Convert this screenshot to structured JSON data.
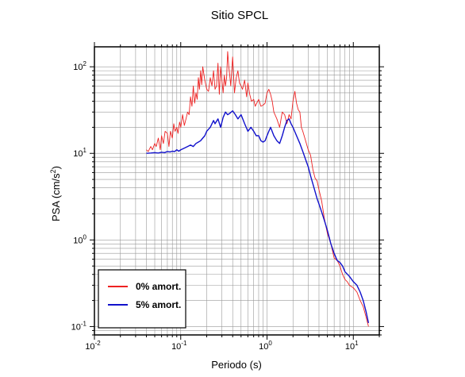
{
  "chart_data": {
    "type": "line",
    "title": "Sitio SPCL",
    "xlabel": "Periodo (s)",
    "ylabel_main": "PSA (cm/s",
    "ylabel_sup": "2",
    "ylabel_close": ")",
    "xscale": "log",
    "yscale": "log",
    "xlim": [
      0.01,
      20
    ],
    "ylim": [
      0.08,
      170
    ],
    "grid": true,
    "legend_position": "bottom-left",
    "x_ticks": [
      {
        "value": 0.01,
        "base": "10",
        "exp": "-2"
      },
      {
        "value": 0.1,
        "base": "10",
        "exp": "-1"
      },
      {
        "value": 1,
        "base": "10",
        "exp": "0"
      },
      {
        "value": 10,
        "base": "10",
        "exp": "1"
      }
    ],
    "y_ticks": [
      {
        "value": 0.1,
        "base": "10",
        "exp": "-1"
      },
      {
        "value": 1,
        "base": "10",
        "exp": "0"
      },
      {
        "value": 10,
        "base": "10",
        "exp": "1"
      },
      {
        "value": 100,
        "base": "10",
        "exp": "2"
      }
    ],
    "series": [
      {
        "name": "0% amort.",
        "color": "#ee2222",
        "x": [
          0.04,
          0.042,
          0.045,
          0.047,
          0.05,
          0.052,
          0.055,
          0.058,
          0.06,
          0.063,
          0.066,
          0.07,
          0.073,
          0.076,
          0.08,
          0.083,
          0.086,
          0.09,
          0.093,
          0.097,
          0.1,
          0.105,
          0.11,
          0.115,
          0.12,
          0.125,
          0.13,
          0.135,
          0.14,
          0.145,
          0.15,
          0.155,
          0.16,
          0.165,
          0.17,
          0.175,
          0.18,
          0.19,
          0.2,
          0.21,
          0.22,
          0.23,
          0.24,
          0.25,
          0.26,
          0.27,
          0.28,
          0.29,
          0.3,
          0.31,
          0.32,
          0.33,
          0.34,
          0.35,
          0.36,
          0.37,
          0.38,
          0.39,
          0.4,
          0.42,
          0.44,
          0.46,
          0.48,
          0.5,
          0.52,
          0.55,
          0.58,
          0.6,
          0.63,
          0.66,
          0.7,
          0.73,
          0.76,
          0.8,
          0.85,
          0.9,
          0.95,
          1.0,
          1.05,
          1.1,
          1.15,
          1.2,
          1.3,
          1.4,
          1.5,
          1.6,
          1.7,
          1.8,
          1.9,
          2.0,
          2.1,
          2.2,
          2.3,
          2.4,
          2.5,
          2.6,
          2.8,
          3.0,
          3.2,
          3.4,
          3.6,
          3.8,
          4.0,
          4.3,
          4.6,
          5.0,
          5.5,
          6.0,
          6.5,
          7.0,
          7.5,
          8.0,
          8.5,
          9.0,
          10.0,
          11.0,
          12.0,
          13.0,
          14.0,
          15.0
        ],
        "y": [
          11,
          10.5,
          12,
          11,
          13,
          12,
          15,
          11,
          16,
          13,
          18,
          17,
          12,
          18,
          15,
          22,
          18,
          20,
          17,
          23,
          20,
          28,
          21,
          25,
          30,
          28,
          45,
          35,
          60,
          38,
          50,
          42,
          75,
          55,
          90,
          62,
          100,
          70,
          55,
          52,
          75,
          60,
          90,
          55,
          60,
          110,
          48,
          100,
          70,
          50,
          80,
          60,
          75,
          150,
          100,
          80,
          60,
          90,
          130,
          50,
          75,
          90,
          65,
          60,
          55,
          70,
          45,
          65,
          48,
          40,
          42,
          35,
          38,
          42,
          35,
          36,
          38,
          50,
          55,
          48,
          40,
          30,
          25,
          20,
          30,
          28,
          22,
          28,
          25,
          40,
          52,
          38,
          32,
          30,
          20,
          18,
          14,
          11,
          9.5,
          6.5,
          5.2,
          4.8,
          3.8,
          2.8,
          1.8,
          1.2,
          0.9,
          0.62,
          0.58,
          0.5,
          0.4,
          0.35,
          0.33,
          0.3,
          0.28,
          0.25,
          0.2,
          0.17,
          0.13,
          0.1
        ]
      },
      {
        "name": "5% amort.",
        "color": "#1111cc",
        "x": [
          0.04,
          0.045,
          0.05,
          0.055,
          0.06,
          0.065,
          0.07,
          0.075,
          0.08,
          0.085,
          0.09,
          0.095,
          0.1,
          0.11,
          0.12,
          0.13,
          0.14,
          0.15,
          0.16,
          0.17,
          0.18,
          0.19,
          0.2,
          0.21,
          0.22,
          0.23,
          0.24,
          0.25,
          0.27,
          0.29,
          0.31,
          0.33,
          0.35,
          0.37,
          0.4,
          0.43,
          0.46,
          0.5,
          0.55,
          0.6,
          0.65,
          0.7,
          0.75,
          0.8,
          0.85,
          0.9,
          0.95,
          1.0,
          1.05,
          1.1,
          1.2,
          1.3,
          1.4,
          1.5,
          1.6,
          1.7,
          1.8,
          1.9,
          2.0,
          2.2,
          2.4,
          2.6,
          2.8,
          3.0,
          3.2,
          3.5,
          3.8,
          4.0,
          4.3,
          4.6,
          5.0,
          5.5,
          6.0,
          6.5,
          7.0,
          7.5,
          8.0,
          9.0,
          10.0,
          11.0,
          12.0,
          13.0,
          14.0,
          15.0
        ],
        "y": [
          10,
          10.1,
          10.2,
          10.1,
          10.3,
          10.2,
          10.5,
          10.4,
          10.6,
          10.5,
          11,
          10.6,
          11,
          11.5,
          12,
          12.5,
          12,
          13,
          13.5,
          14,
          15,
          16,
          18,
          19,
          20,
          22,
          24,
          22,
          25,
          20,
          26,
          30,
          28,
          29,
          31,
          28,
          25,
          28,
          22,
          18,
          20,
          18,
          16,
          16,
          14,
          13.5,
          14,
          16,
          18,
          20,
          16,
          14,
          13,
          16,
          20,
          24,
          25,
          22,
          20,
          16,
          13,
          10.5,
          8.5,
          7,
          5.5,
          4,
          3,
          2.6,
          2.1,
          1.7,
          1.3,
          0.9,
          0.7,
          0.58,
          0.55,
          0.5,
          0.43,
          0.38,
          0.33,
          0.3,
          0.25,
          0.2,
          0.15,
          0.11
        ]
      }
    ]
  }
}
